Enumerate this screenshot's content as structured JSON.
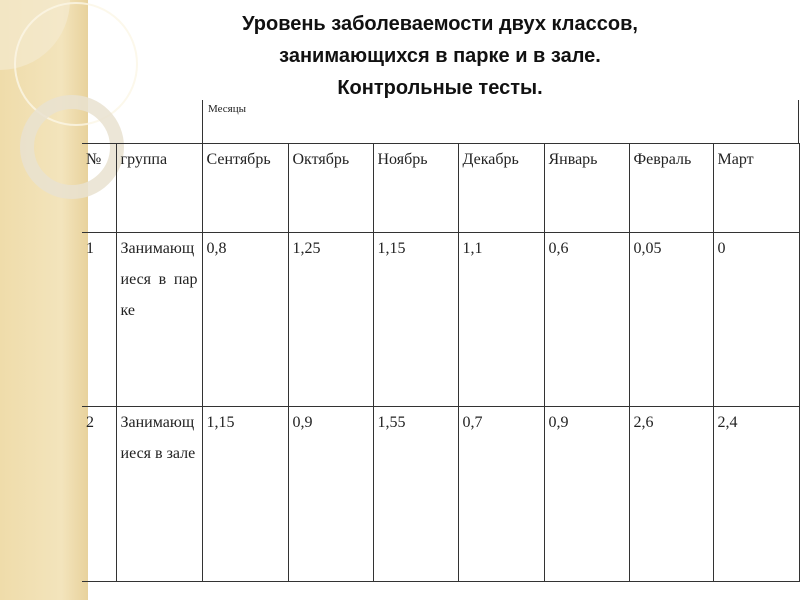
{
  "title": [
    "Уровень заболеваемости двух классов,",
    "занимающихся в парке и в зале.",
    "Контрольные тесты."
  ],
  "table": {
    "months_label": "Месяцы",
    "headers": [
      "№",
      "группа",
      "Сентябрь",
      "Октябрь",
      "Ноябрь",
      "Декабрь",
      "Январь",
      "Февраль",
      "Март"
    ],
    "rows": [
      {
        "num": "1",
        "group": "Занимающиеся в парке",
        "values": [
          "0,8",
          "1,25",
          "1,15",
          "1,1",
          "0,6",
          "0,05",
          "0"
        ]
      },
      {
        "num": "2",
        "group": "Занимающиеся в зале",
        "values": [
          "1,15",
          "0,9",
          "1,55",
          "0,7",
          "0,9",
          "2,6",
          "2,4"
        ]
      }
    ]
  }
}
